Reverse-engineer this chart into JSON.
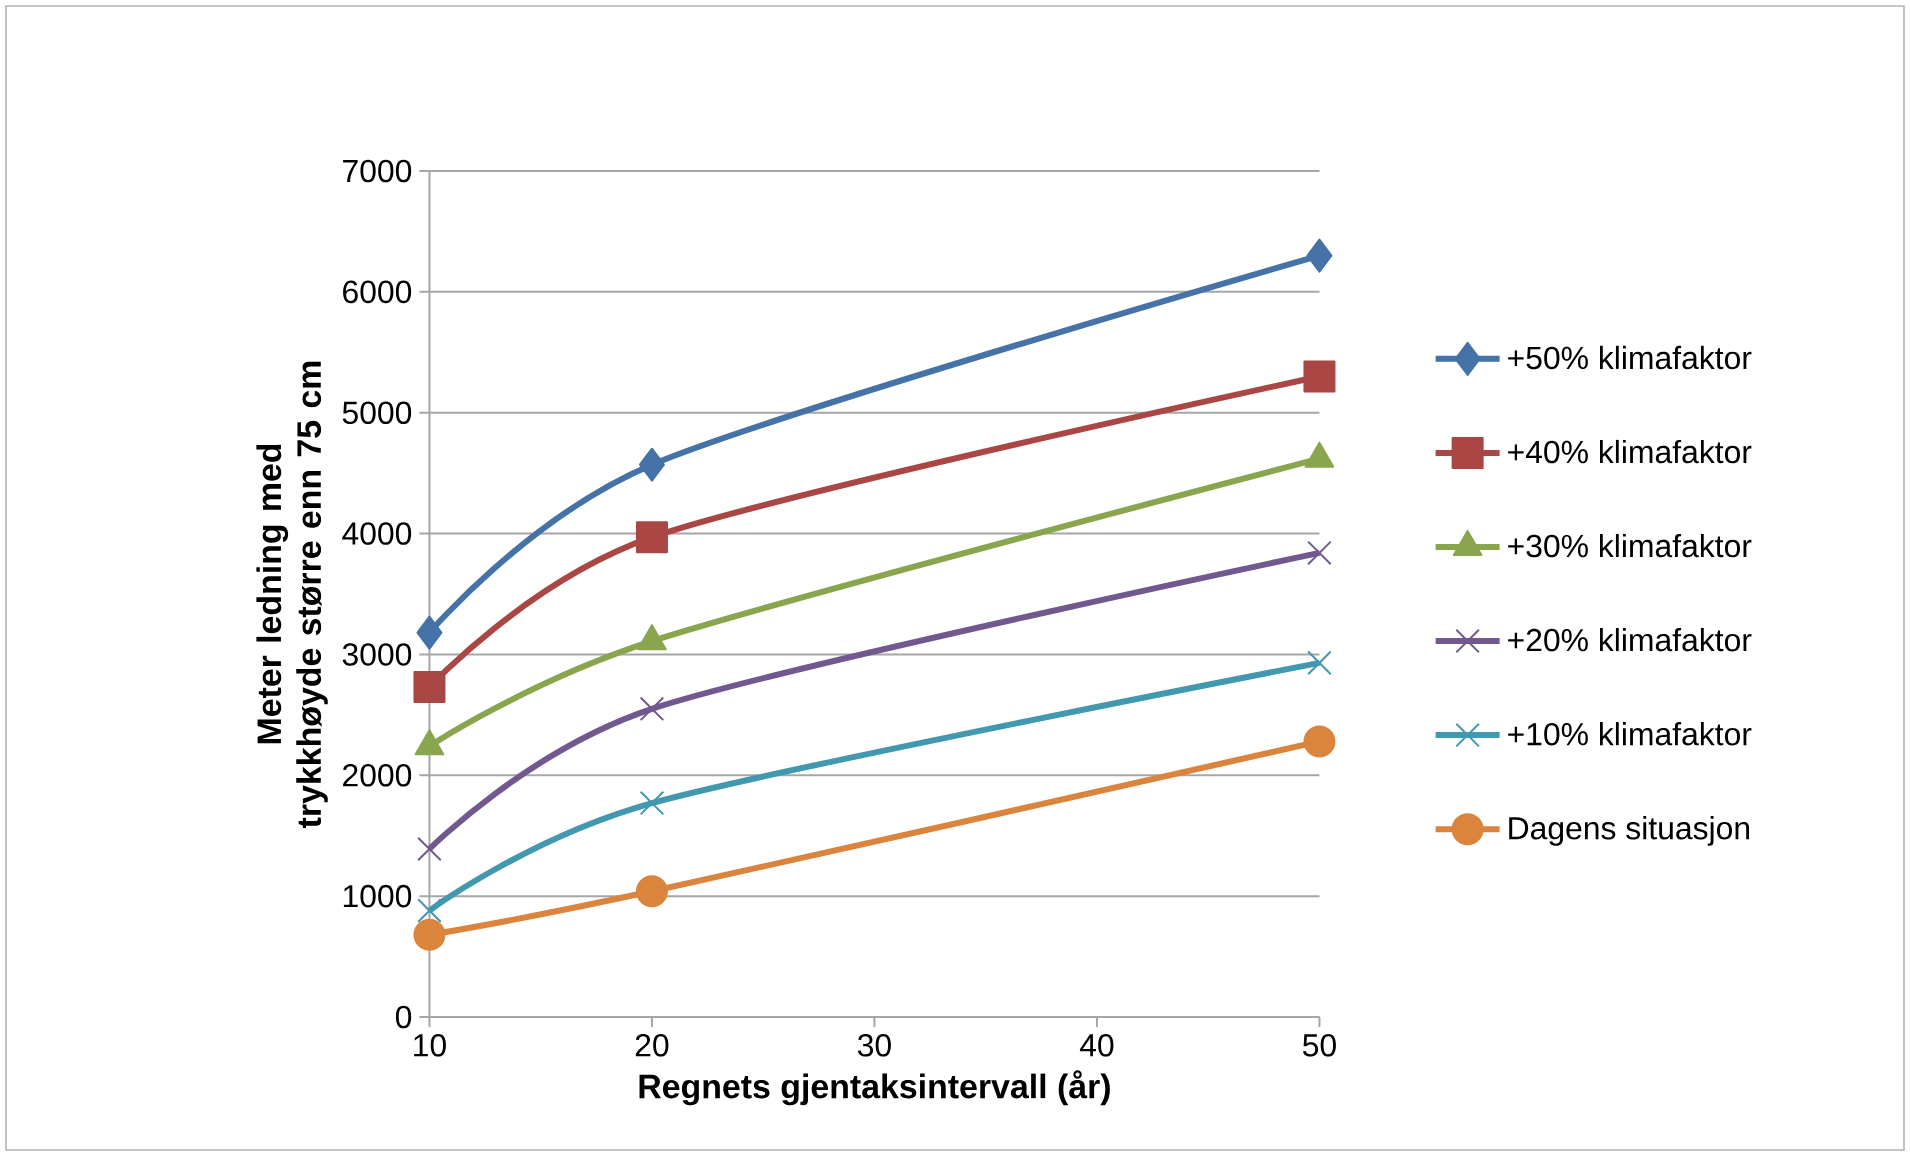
{
  "chart_data": {
    "type": "line",
    "xlabel": "Regnets gjentaksintervall (år)",
    "ylabel": "Meter ledning med trykkhøyde større enn 75 cm",
    "x": [
      10,
      20,
      50
    ],
    "xlim": [
      10,
      50
    ],
    "xticks": [
      10,
      20,
      30,
      40,
      50
    ],
    "ylim": [
      0,
      7000
    ],
    "yticks": [
      0,
      1000,
      2000,
      3000,
      4000,
      5000,
      6000,
      7000
    ],
    "grid": "y",
    "legend": "right",
    "line_style": "solid",
    "series": [
      {
        "name": "+50% klimafaktor",
        "color": "#4572a7",
        "marker": "diamond",
        "values": [
          3180,
          4570,
          6300
        ]
      },
      {
        "name": "+40% klimafaktor",
        "color": "#aa4643",
        "marker": "square",
        "values": [
          2730,
          3970,
          5300
        ]
      },
      {
        "name": "+30% klimafaktor",
        "color": "#89a54e",
        "marker": "triangle",
        "values": [
          2240,
          3110,
          4620
        ]
      },
      {
        "name": "+20% klimafaktor",
        "color": "#71588f",
        "marker": "cross",
        "values": [
          1390,
          2550,
          3840
        ]
      },
      {
        "name": "+10% klimafaktor",
        "color": "#4198af",
        "marker": "cross",
        "values": [
          880,
          1770,
          2930
        ]
      },
      {
        "name": "Dagens situasjon",
        "color": "#db843d",
        "marker": "circle",
        "values": [
          680,
          1040,
          2280
        ]
      }
    ]
  }
}
